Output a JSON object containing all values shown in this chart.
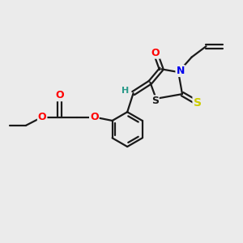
{
  "background_color": "#ebebeb",
  "bond_color": "#1a1a1a",
  "bond_width": 1.6,
  "atom_colors": {
    "O": "#ff0000",
    "N": "#0000ee",
    "S_thioxo": "#cccc00",
    "S_ring": "#1a1a1a",
    "H": "#2a9a8a",
    "C": "#1a1a1a"
  },
  "font_size_atoms": 9,
  "font_size_H": 8
}
